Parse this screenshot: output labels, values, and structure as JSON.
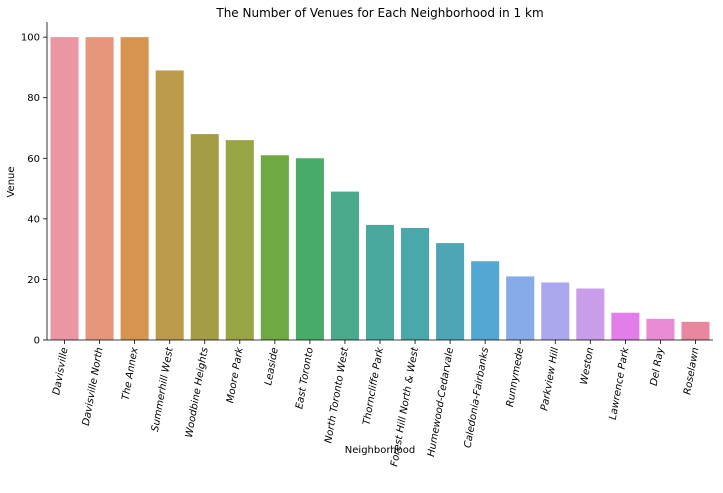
{
  "chart_data": {
    "type": "bar",
    "title": "The Number of Venues for Each Neighborhood in 1 km",
    "xlabel": "Neighborhood",
    "ylabel": "Venue",
    "ylim": [
      0,
      105
    ],
    "yticks": [
      0,
      20,
      40,
      60,
      80,
      100
    ],
    "categories": [
      "Davisville",
      "Davisville North",
      "The Annex",
      "Summerhill West",
      "Woodbine Heights",
      "Moore Park",
      "Leaside",
      "East Toronto",
      "North Toronto West",
      "Thorncliffe Park",
      "Forest Hill North & West",
      "Humewood-Cedarvale",
      "Caledonia-Fairbanks",
      "Runnymede",
      "Parkview Hill",
      "Weston",
      "Lawrence Park",
      "Del Ray",
      "Roselawn"
    ],
    "values": [
      100,
      100,
      100,
      89,
      68,
      66,
      61,
      60,
      49,
      38,
      37,
      32,
      26,
      21,
      19,
      17,
      9,
      7,
      6
    ],
    "colors": [
      "#ea96a3",
      "#e8967a",
      "#d59450",
      "#bd9a4a",
      "#a59d44",
      "#99a444",
      "#6ea944",
      "#48ac68",
      "#4aaa8c",
      "#4aa99f",
      "#4ba8aa",
      "#4da5b6",
      "#53a8d3",
      "#87aae8",
      "#aba8ef",
      "#c99de9",
      "#e27ee9",
      "#e98ad4",
      "#e8879e"
    ],
    "grid": false,
    "legend": false
  }
}
